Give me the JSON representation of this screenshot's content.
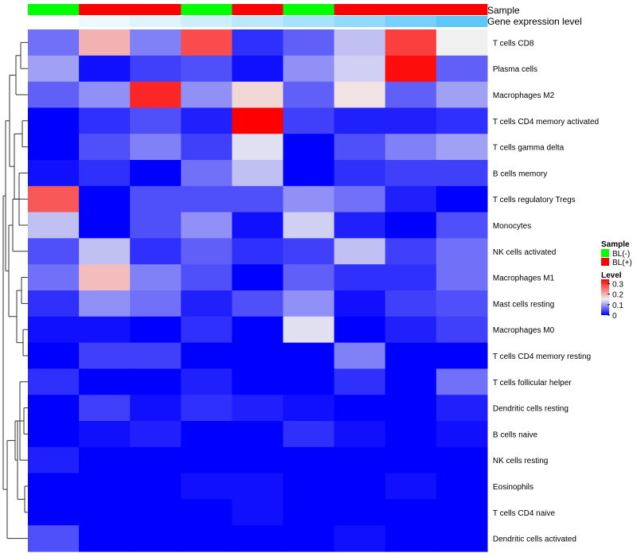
{
  "chart_data": {
    "type": "heatmap",
    "annotation_names": [
      "Sample",
      "Gene expression level"
    ],
    "columns": [
      {
        "sample": "BL(-)",
        "gene_expression": 0.0
      },
      {
        "sample": "BL(+)",
        "gene_expression": 0.1
      },
      {
        "sample": "BL(+)",
        "gene_expression": 0.18
      },
      {
        "sample": "BL(-)",
        "gene_expression": 0.28
      },
      {
        "sample": "BL(+)",
        "gene_expression": 0.38
      },
      {
        "sample": "BL(-)",
        "gene_expression": 0.5
      },
      {
        "sample": "BL(+)",
        "gene_expression": 0.62
      },
      {
        "sample": "BL(+)",
        "gene_expression": 0.78
      },
      {
        "sample": "BL(+)",
        "gene_expression": 0.92
      }
    ],
    "rows": [
      "T cells CD8",
      "Plasma cells",
      "Macrophages M2",
      "T cells CD4 memory activated",
      "T cells gamma delta",
      "B cells memory",
      "T cells regulatory  Tregs",
      "Monocytes",
      "NK cells activated",
      "Macrophages M1",
      "Mast cells resting",
      "Macrophages M0",
      "T cells CD4 memory resting",
      "T cells follicular helper",
      "Dendritic cells resting",
      "B cells naive",
      "NK cells resting",
      "Eosinophils",
      "T cells CD4 naive",
      "Dendritic cells activated"
    ],
    "values": [
      [
        0.07,
        0.2,
        0.08,
        0.28,
        0.03,
        0.06,
        0.12,
        0.29,
        0.15
      ],
      [
        0.1,
        0.01,
        0.04,
        0.05,
        0.01,
        0.09,
        0.13,
        0.33,
        0.06
      ],
      [
        0.06,
        0.09,
        0.31,
        0.09,
        0.17,
        0.06,
        0.16,
        0.06,
        0.1
      ],
      [
        0.0,
        0.03,
        0.05,
        0.02,
        0.34,
        0.04,
        0.02,
        0.02,
        0.03
      ],
      [
        0.0,
        0.05,
        0.08,
        0.04,
        0.14,
        0.0,
        0.05,
        0.08,
        0.1
      ],
      [
        0.01,
        0.03,
        0.0,
        0.07,
        0.12,
        0.0,
        0.03,
        0.04,
        0.04
      ],
      [
        0.27,
        0.0,
        0.05,
        0.05,
        0.05,
        0.09,
        0.07,
        0.02,
        0.0
      ],
      [
        0.12,
        0.0,
        0.05,
        0.09,
        0.01,
        0.13,
        0.02,
        0.0,
        0.05
      ],
      [
        0.05,
        0.12,
        0.03,
        0.06,
        0.03,
        0.04,
        0.12,
        0.04,
        0.07
      ],
      [
        0.07,
        0.19,
        0.08,
        0.05,
        0.0,
        0.06,
        0.03,
        0.03,
        0.07
      ],
      [
        0.03,
        0.09,
        0.07,
        0.02,
        0.05,
        0.09,
        0.01,
        0.04,
        0.05
      ],
      [
        0.01,
        0.01,
        0.0,
        0.03,
        0.0,
        0.14,
        0.0,
        0.02,
        0.04
      ],
      [
        0.0,
        0.04,
        0.04,
        0.0,
        0.0,
        0.0,
        0.08,
        0.0,
        0.0
      ],
      [
        0.03,
        0.0,
        0.0,
        0.02,
        0.0,
        0.0,
        0.03,
        0.0,
        0.07
      ],
      [
        0.0,
        0.04,
        0.01,
        0.03,
        0.02,
        0.01,
        0.0,
        0.0,
        0.02
      ],
      [
        0.0,
        0.01,
        0.02,
        0.0,
        0.0,
        0.03,
        0.01,
        0.0,
        0.01
      ],
      [
        0.02,
        0.0,
        0.0,
        0.0,
        0.0,
        0.0,
        0.0,
        0.0,
        0.0
      ],
      [
        0.0,
        0.0,
        0.0,
        0.01,
        0.01,
        0.0,
        0.0,
        0.01,
        0.0
      ],
      [
        0.0,
        0.0,
        0.0,
        0.0,
        0.01,
        0.0,
        0.0,
        0.0,
        0.0
      ],
      [
        0.05,
        0.0,
        0.0,
        0.0,
        0.0,
        0.0,
        0.01,
        0.0,
        0.0
      ]
    ],
    "color_scale": {
      "low": "#0000ff",
      "mid": "#f0f0f0",
      "high": "#ff0000",
      "mid_value": 0.15,
      "range": [
        0,
        0.34
      ]
    },
    "legend": {
      "sample_title": "Sample",
      "sample_entries": [
        {
          "label": "BL(-)",
          "color": "#00ff00"
        },
        {
          "label": "BL(+)",
          "color": "#ff0000"
        }
      ],
      "level_title": "Level",
      "level_ticks": [
        {
          "label": "0.3",
          "value": 0.3
        },
        {
          "label": "0.2",
          "value": 0.2
        },
        {
          "label": "0.1",
          "value": 0.1
        },
        {
          "label": "0",
          "value": 0
        }
      ],
      "placement": "right"
    },
    "gene_expression_colors": {
      "low": "#ffffff",
      "high": "#4fc3f7"
    },
    "dendrogram": "left"
  }
}
